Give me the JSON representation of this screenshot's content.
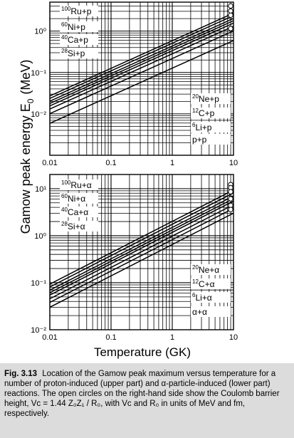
{
  "figure": {
    "ylabel": "Gamow peak energy E",
    "ylabel_sub": "0",
    "ylabel_unit": "(MeV)",
    "xlabel": "Temperature  (GK)"
  },
  "chart_data": [
    {
      "type": "line",
      "panel": "upper",
      "xscale": "log",
      "yscale": "log",
      "xlim": [
        0.01,
        10
      ],
      "ylim": [
        0.001,
        5
      ],
      "x_ticks": [
        "0.01",
        "0.1",
        "1",
        "10"
      ],
      "y_ticks": [
        "10⁻²",
        "10⁻¹",
        "10⁰"
      ],
      "grid": true,
      "x": [
        0.01,
        10
      ],
      "series": [
        {
          "name": "p+p",
          "label_iso": "",
          "label_rest": "p+p",
          "values": [
            0.0059,
            0.59
          ]
        },
        {
          "name": "6Li+p",
          "label_iso": "6",
          "label_rest": "Li+p",
          "values": [
            0.0101,
            1.01
          ]
        },
        {
          "name": "12C+p",
          "label_iso": "12",
          "label_rest": "C+p",
          "values": [
            0.0131,
            1.31
          ]
        },
        {
          "name": "20Ne+p",
          "label_iso": "20",
          "label_rest": "Ne+p",
          "values": [
            0.0156,
            1.56
          ]
        },
        {
          "name": "28Si+p",
          "label_iso": "28",
          "label_rest": "Si+p",
          "values": [
            0.0178,
            1.78
          ]
        },
        {
          "name": "40Ca+p",
          "label_iso": "40",
          "label_rest": "Ca+p",
          "values": [
            0.0202,
            2.02
          ]
        },
        {
          "name": "60Ni+p",
          "label_iso": "60",
          "label_rest": "Ni+p",
          "values": [
            0.0236,
            2.36
          ]
        },
        {
          "name": "100Ru+p",
          "label_iso": "100",
          "label_rest": "Ru+p",
          "values": [
            0.0271,
            2.71
          ]
        }
      ],
      "coulomb_barrier_circles_MeV": [
        4.05,
        3.06,
        2.42,
        1.15
      ]
    },
    {
      "type": "line",
      "panel": "lower",
      "xscale": "log",
      "yscale": "log",
      "xlim": [
        0.01,
        10
      ],
      "ylim": [
        0.01,
        20
      ],
      "x_ticks": [
        "0.01",
        "0.1",
        "1",
        "10"
      ],
      "y_ticks": [
        "10⁻²",
        "10⁻¹",
        "10⁰",
        "10¹"
      ],
      "grid": true,
      "x": [
        0.01,
        10
      ],
      "series": [
        {
          "name": "α+α",
          "label_iso": "",
          "label_rest": "α+α",
          "values": [
            0.0301,
            3.01
          ]
        },
        {
          "name": "6Li+α",
          "label_iso": "6",
          "label_rest": "Li+α",
          "values": [
            0.0381,
            3.81
          ]
        },
        {
          "name": "12C+α",
          "label_iso": "12",
          "label_rest": "C+α",
          "values": [
            0.0456,
            4.56
          ]
        },
        {
          "name": "20Ne+α",
          "label_iso": "20",
          "label_rest": "Ne+α",
          "values": [
            0.0546,
            5.46
          ]
        },
        {
          "name": "28Si+α",
          "label_iso": "28",
          "label_rest": "Si+α",
          "values": [
            0.0614,
            6.14
          ]
        },
        {
          "name": "40Ca+α",
          "label_iso": "40",
          "label_rest": "Ca+α",
          "values": [
            0.0695,
            6.95
          ]
        },
        {
          "name": "60Ni+α",
          "label_iso": "60",
          "label_rest": "Ni+α",
          "values": [
            0.0812,
            8.12
          ]
        },
        {
          "name": "100Ru+α",
          "label_iso": "100",
          "label_rest": "Ru+α",
          "values": [
            0.0934,
            9.34
          ]
        }
      ],
      "coulomb_barrier_circles_MeV": [
        12.2,
        10.5,
        8.6,
        6.1,
        4.4,
        3.6
      ]
    }
  ],
  "caption": {
    "fig_number": "Fig. 3.13",
    "text": "Location of the Gamow peak maximum versus temperature for a number of proton-induced (upper part) and α-particle-induced (lower part) reactions. The open circles on the right-hand side show the Coulomb barrier height, Vᴄ = 1.44 Z₀Z₁ / R₀, with Vᴄ and R₀ in units of MeV and fm, respectively."
  }
}
